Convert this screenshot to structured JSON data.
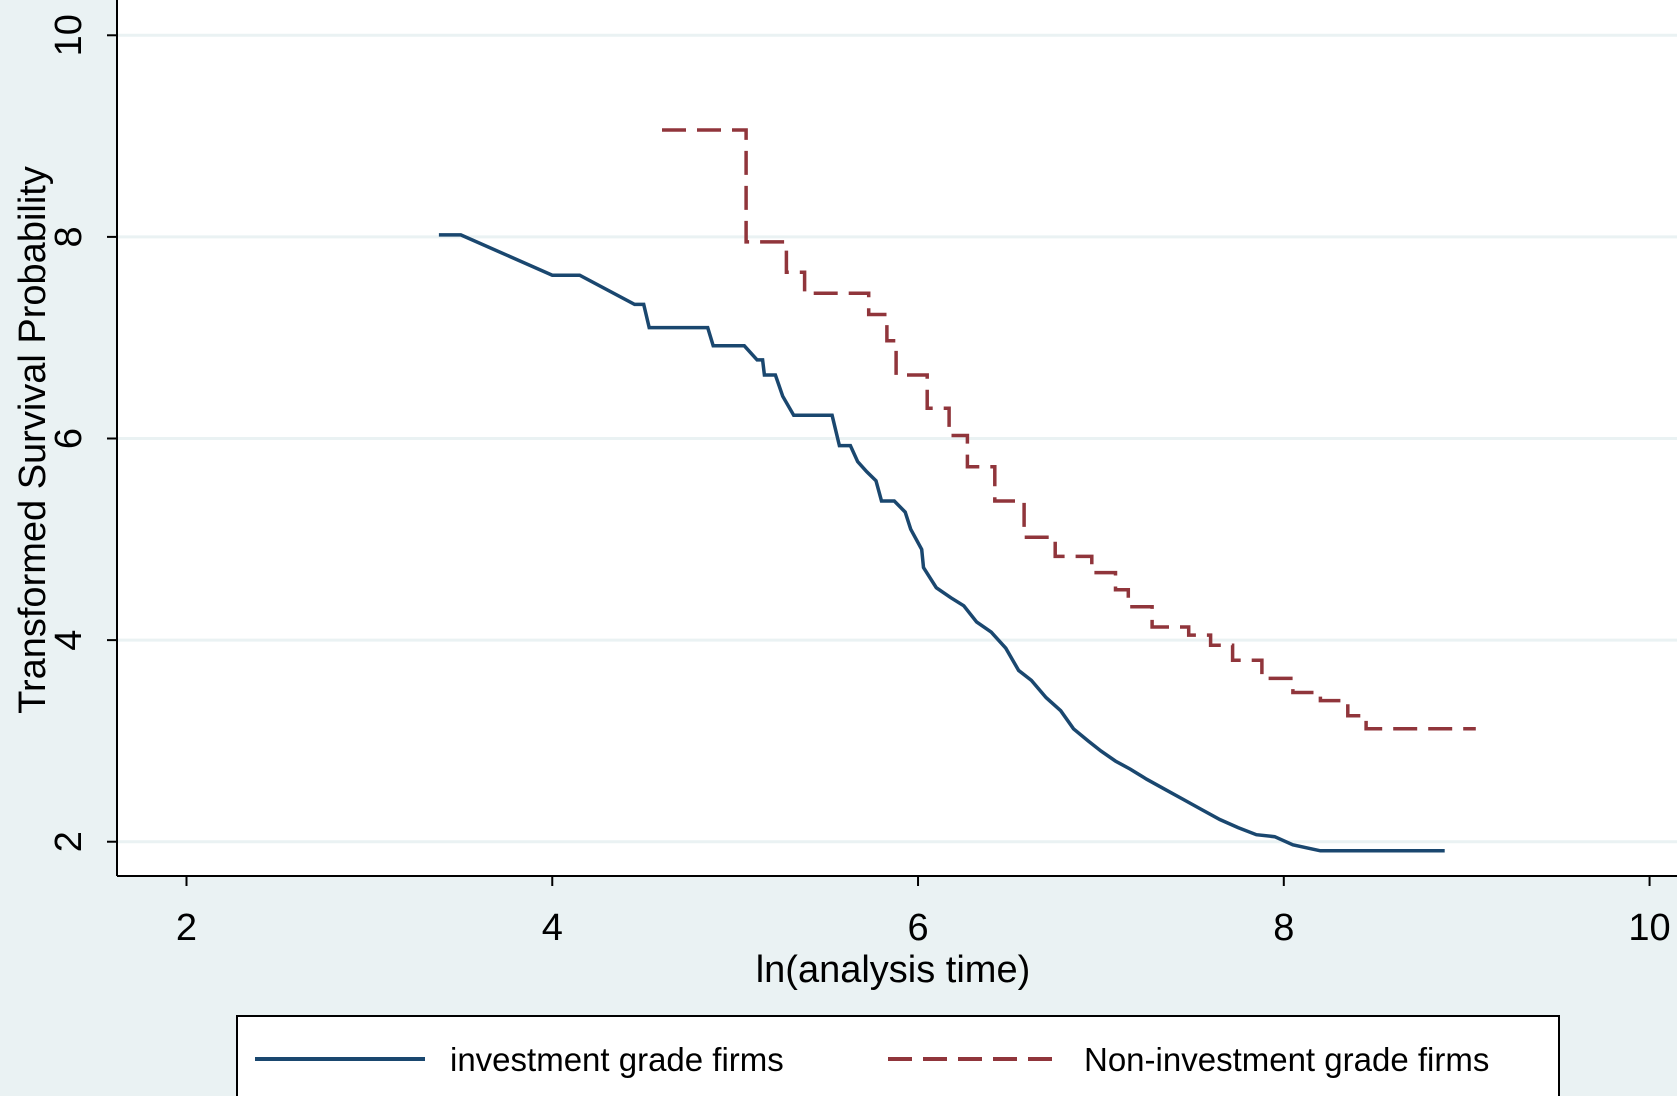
{
  "chart_data": {
    "type": "line",
    "title": "",
    "xlabel": "ln(analysis time)",
    "ylabel": "Transformed Survival Probability",
    "xlim": [
      1.62,
      10.15
    ],
    "ylim": [
      1.66,
      10.35
    ],
    "x_ticks": [
      2,
      4,
      6,
      8,
      10
    ],
    "y_ticks": [
      2,
      4,
      6,
      8,
      10
    ],
    "x_tick_labels": [
      "2",
      "4",
      "6",
      "8",
      "10"
    ],
    "y_tick_labels": [
      "2",
      "4",
      "6",
      "8",
      "10"
    ],
    "grid": true,
    "legend_position": "bottom",
    "colors": {
      "background": "#eaf2f3",
      "plot_background": "#ffffff",
      "grid": "#eaf2f3",
      "axis": "#000000",
      "investment": "#1a476f",
      "non_investment": "#90353b"
    },
    "series": [
      {
        "name": "investment grade firms",
        "step": false,
        "dash": "solid",
        "points": [
          [
            3.38,
            8.02
          ],
          [
            3.5,
            8.02
          ],
          [
            4.0,
            7.62
          ],
          [
            4.15,
            7.62
          ],
          [
            4.45,
            7.33
          ],
          [
            4.5,
            7.33
          ],
          [
            4.53,
            7.1
          ],
          [
            4.85,
            7.1
          ],
          [
            4.88,
            6.92
          ],
          [
            5.05,
            6.92
          ],
          [
            5.12,
            6.78
          ],
          [
            5.15,
            6.78
          ],
          [
            5.16,
            6.63
          ],
          [
            5.22,
            6.63
          ],
          [
            5.26,
            6.42
          ],
          [
            5.32,
            6.23
          ],
          [
            5.53,
            6.23
          ],
          [
            5.57,
            5.93
          ],
          [
            5.63,
            5.93
          ],
          [
            5.67,
            5.77
          ],
          [
            5.72,
            5.67
          ],
          [
            5.77,
            5.58
          ],
          [
            5.8,
            5.38
          ],
          [
            5.87,
            5.38
          ],
          [
            5.93,
            5.27
          ],
          [
            5.96,
            5.1
          ],
          [
            6.02,
            4.9
          ],
          [
            6.03,
            4.72
          ],
          [
            6.1,
            4.52
          ],
          [
            6.18,
            4.42
          ],
          [
            6.25,
            4.34
          ],
          [
            6.32,
            4.18
          ],
          [
            6.4,
            4.08
          ],
          [
            6.48,
            3.92
          ],
          [
            6.55,
            3.7
          ],
          [
            6.62,
            3.6
          ],
          [
            6.7,
            3.43
          ],
          [
            6.78,
            3.3
          ],
          [
            6.85,
            3.12
          ],
          [
            6.93,
            3.0
          ],
          [
            7.0,
            2.9
          ],
          [
            7.08,
            2.8
          ],
          [
            7.16,
            2.72
          ],
          [
            7.25,
            2.62
          ],
          [
            7.35,
            2.52
          ],
          [
            7.45,
            2.42
          ],
          [
            7.55,
            2.32
          ],
          [
            7.65,
            2.22
          ],
          [
            7.75,
            2.14
          ],
          [
            7.85,
            2.07
          ],
          [
            7.95,
            2.05
          ],
          [
            8.05,
            1.97
          ],
          [
            8.15,
            1.93
          ],
          [
            8.2,
            1.91
          ],
          [
            8.88,
            1.91
          ]
        ]
      },
      {
        "name": "Non-investment grade firms",
        "step": true,
        "dash": "long-dash",
        "points": [
          [
            4.6,
            9.06
          ],
          [
            5.06,
            9.06
          ],
          [
            5.06,
            7.95
          ],
          [
            5.28,
            7.95
          ],
          [
            5.28,
            7.65
          ],
          [
            5.38,
            7.65
          ],
          [
            5.38,
            7.44
          ],
          [
            5.73,
            7.44
          ],
          [
            5.73,
            7.23
          ],
          [
            5.83,
            7.23
          ],
          [
            5.83,
            6.97
          ],
          [
            5.88,
            6.97
          ],
          [
            5.88,
            6.63
          ],
          [
            6.05,
            6.63
          ],
          [
            6.05,
            6.3
          ],
          [
            6.17,
            6.3
          ],
          [
            6.17,
            6.03
          ],
          [
            6.27,
            6.03
          ],
          [
            6.27,
            5.72
          ],
          [
            6.42,
            5.72
          ],
          [
            6.42,
            5.38
          ],
          [
            6.58,
            5.38
          ],
          [
            6.58,
            5.02
          ],
          [
            6.75,
            5.02
          ],
          [
            6.75,
            4.83
          ],
          [
            6.95,
            4.83
          ],
          [
            6.95,
            4.67
          ],
          [
            7.08,
            4.67
          ],
          [
            7.08,
            4.5
          ],
          [
            7.15,
            4.5
          ],
          [
            7.15,
            4.33
          ],
          [
            7.28,
            4.33
          ],
          [
            7.28,
            4.13
          ],
          [
            7.48,
            4.13
          ],
          [
            7.48,
            4.05
          ],
          [
            7.6,
            4.05
          ],
          [
            7.6,
            3.95
          ],
          [
            7.72,
            3.95
          ],
          [
            7.72,
            3.8
          ],
          [
            7.88,
            3.8
          ],
          [
            7.88,
            3.62
          ],
          [
            8.05,
            3.62
          ],
          [
            8.05,
            3.48
          ],
          [
            8.2,
            3.48
          ],
          [
            8.2,
            3.4
          ],
          [
            8.35,
            3.4
          ],
          [
            8.35,
            3.25
          ],
          [
            8.45,
            3.25
          ],
          [
            8.45,
            3.12
          ],
          [
            9.05,
            3.12
          ]
        ]
      }
    ]
  }
}
